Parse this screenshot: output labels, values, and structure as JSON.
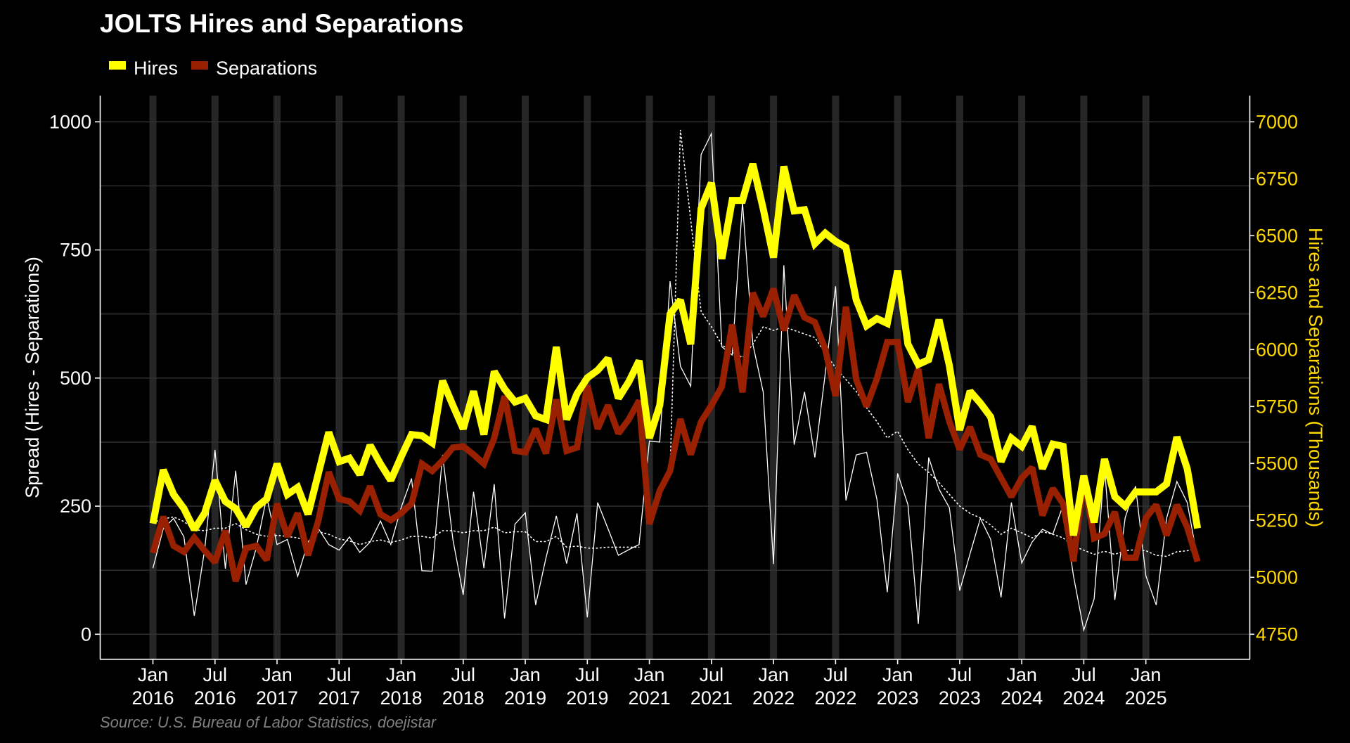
{
  "chart_data": {
    "type": "line",
    "title": "JOLTS Hires and Separations",
    "source": "Source: U.S. Bureau of Labor Statistics, doejistar",
    "legend": {
      "position": "top-left",
      "entries": [
        {
          "name": "Hires",
          "color": "#FFFF00"
        },
        {
          "name": "Separations",
          "color": "#992000"
        }
      ]
    },
    "ylabel_left": "Spread (Hires - Separations)",
    "ylabel_right": "Hires and Separations (Thousands)",
    "ylim_left": [
      -40,
      1060
    ],
    "ylim_right": [
      4658,
      7055
    ],
    "yticks_left": [
      "0",
      "250",
      "500",
      "750",
      "1000"
    ],
    "yticks_left_values": [
      0,
      250,
      500,
      750,
      1000
    ],
    "yticks_right": [
      "4750",
      "5000",
      "5250",
      "5500",
      "5750",
      "6000",
      "6250",
      "6500",
      "6750",
      "7000"
    ],
    "yticks_right_values": [
      4750,
      5000,
      5250,
      5500,
      5750,
      6000,
      6250,
      6500,
      6750,
      7000
    ],
    "grid_left_minor_step": 125,
    "note_x_axis": "Calendar year 2020 omitted from the axis",
    "xticks": [
      {
        "month": "Jan",
        "year": "2016",
        "index": 0
      },
      {
        "month": "Jul",
        "year": "2016",
        "index": 6
      },
      {
        "month": "Jan",
        "year": "2017",
        "index": 12
      },
      {
        "month": "Jul",
        "year": "2017",
        "index": 18
      },
      {
        "month": "Jan",
        "year": "2018",
        "index": 24
      },
      {
        "month": "Jul",
        "year": "2018",
        "index": 30
      },
      {
        "month": "Jan",
        "year": "2019",
        "index": 36
      },
      {
        "month": "Jul",
        "year": "2019",
        "index": 42
      },
      {
        "month": "Jan",
        "year": "2021",
        "index": 48
      },
      {
        "month": "Jul",
        "year": "2021",
        "index": 54
      },
      {
        "month": "Jan",
        "year": "2022",
        "index": 60
      },
      {
        "month": "Jul",
        "year": "2022",
        "index": 66
      },
      {
        "month": "Jan",
        "year": "2023",
        "index": 72
      },
      {
        "month": "Jul",
        "year": "2023",
        "index": 78
      },
      {
        "month": "Jan",
        "year": "2024",
        "index": 84
      },
      {
        "month": "Jul",
        "year": "2024",
        "index": 90
      },
      {
        "month": "Jan",
        "year": "2025",
        "index": 96
      }
    ],
    "x": [
      "2016-01",
      "2016-02",
      "2016-03",
      "2016-04",
      "2016-05",
      "2016-06",
      "2016-07",
      "2016-08",
      "2016-09",
      "2016-10",
      "2016-11",
      "2016-12",
      "2017-01",
      "2017-02",
      "2017-03",
      "2017-04",
      "2017-05",
      "2017-06",
      "2017-07",
      "2017-08",
      "2017-09",
      "2017-10",
      "2017-11",
      "2017-12",
      "2018-01",
      "2018-02",
      "2018-03",
      "2018-04",
      "2018-05",
      "2018-06",
      "2018-07",
      "2018-08",
      "2018-09",
      "2018-10",
      "2018-11",
      "2018-12",
      "2019-01",
      "2019-02",
      "2019-03",
      "2019-04",
      "2019-05",
      "2019-06",
      "2019-07",
      "2019-08",
      "2019-09",
      "2019-10",
      "2019-11",
      "2019-12",
      "2021-01",
      "2021-02",
      "2021-03",
      "2021-04",
      "2021-05",
      "2021-06",
      "2021-07",
      "2021-08",
      "2021-09",
      "2021-10",
      "2021-11",
      "2021-12",
      "2022-01",
      "2022-02",
      "2022-03",
      "2022-04",
      "2022-05",
      "2022-06",
      "2022-07",
      "2022-08",
      "2022-09",
      "2022-10",
      "2022-11",
      "2022-12",
      "2023-01",
      "2023-02",
      "2023-03",
      "2023-04",
      "2023-05",
      "2023-06",
      "2023-07",
      "2023-08",
      "2023-09",
      "2023-10",
      "2023-11",
      "2023-12",
      "2024-01",
      "2024-02",
      "2024-03",
      "2024-04",
      "2024-05",
      "2024-06",
      "2024-07",
      "2024-08",
      "2024-09",
      "2024-10",
      "2024-11",
      "2024-12",
      "2025-01",
      "2025-02",
      "2025-03",
      "2025-04",
      "2025-05",
      "2025-06"
    ],
    "series": [
      {
        "name": "Hires",
        "axis": "right",
        "color": "#FFFF00",
        "values": [
          5236,
          5472,
          5364,
          5302,
          5210,
          5282,
          5426,
          5333,
          5302,
          5225,
          5307,
          5344,
          5498,
          5364,
          5395,
          5277,
          5457,
          5637,
          5508,
          5523,
          5452,
          5580,
          5498,
          5426,
          5529,
          5627,
          5622,
          5590,
          5863,
          5755,
          5652,
          5817,
          5627,
          5904,
          5827,
          5770,
          5786,
          5709,
          5693,
          6012,
          5693,
          5806,
          5876,
          5909,
          5961,
          5786,
          5858,
          5951,
          5611,
          5755,
          6156,
          6218,
          6023,
          6619,
          6732,
          6398,
          6655,
          6655,
          6815,
          6619,
          6404,
          6804,
          6609,
          6614,
          6465,
          6511,
          6475,
          6449,
          6218,
          6105,
          6136,
          6115,
          6347,
          6023,
          5935,
          5956,
          6131,
          5930,
          5647,
          5817,
          5765,
          5704,
          5508,
          5611,
          5575,
          5662,
          5477,
          5585,
          5575,
          5184,
          5446,
          5241,
          5519,
          5354,
          5313,
          5375,
          5375,
          5375,
          5410,
          5616,
          5477,
          5215
        ]
      },
      {
        "name": "Separations",
        "axis": "right",
        "color": "#992000",
        "values": [
          5107,
          5266,
          5138,
          5112,
          5174,
          5117,
          5066,
          5205,
          4983,
          5128,
          5138,
          5076,
          5323,
          5179,
          5282,
          5097,
          5251,
          5462,
          5344,
          5333,
          5292,
          5400,
          5277,
          5251,
          5282,
          5323,
          5498,
          5467,
          5513,
          5570,
          5575,
          5539,
          5498,
          5611,
          5796,
          5555,
          5549,
          5652,
          5544,
          5781,
          5555,
          5570,
          5843,
          5652,
          5755,
          5632,
          5693,
          5776,
          5234,
          5380,
          5467,
          5695,
          5539,
          5683,
          5755,
          5837,
          6110,
          5812,
          6249,
          6146,
          6267,
          6084,
          6239,
          6141,
          6120,
          6002,
          5796,
          6188,
          5868,
          5750,
          5873,
          6033,
          6033,
          5770,
          5915,
          5611,
          5848,
          5683,
          5562,
          5660,
          5539,
          5519,
          5436,
          5354,
          5436,
          5482,
          5272,
          5390,
          5323,
          5070,
          5438,
          5172,
          5191,
          5287,
          5086,
          5086,
          5261,
          5318,
          5184,
          5318,
          5220,
          5069
        ]
      },
      {
        "name": "Spread (Hires - Separations)",
        "axis": "left",
        "color": "#FFFFFF",
        "style": "solid-thin",
        "derived": "Hires - Separations"
      },
      {
        "name": "Spread 12-month average",
        "axis": "left",
        "color": "#FFFFFF",
        "style": "dotted",
        "values": [
          218,
          225,
          229,
          220,
          204,
          202,
          207,
          207,
          216,
          204,
          195,
          191,
          193,
          191,
          188,
          181,
          200,
          195,
          186,
          182,
          175,
          181,
          184,
          179,
          184,
          191,
          191,
          188,
          202,
          202,
          198,
          202,
          202,
          209,
          198,
          200,
          200,
          181,
          181,
          191,
          170,
          172,
          168,
          168,
          170,
          170,
          170,
          170,
          null,
          null,
          320,
          984,
          808,
          630,
          600,
          565,
          550,
          540,
          566,
          600,
          593,
          600,
          593,
          586,
          579,
          548,
          520,
          497,
          474,
          442,
          415,
          383,
          396,
          360,
          332,
          316,
          296,
          273,
          250,
          236,
          227,
          213,
          195,
          207,
          198,
          188,
          200,
          195,
          188,
          172,
          164,
          156,
          162,
          156,
          163,
          165,
          163,
          154,
          152,
          161,
          163,
          168
        ]
      }
    ]
  }
}
